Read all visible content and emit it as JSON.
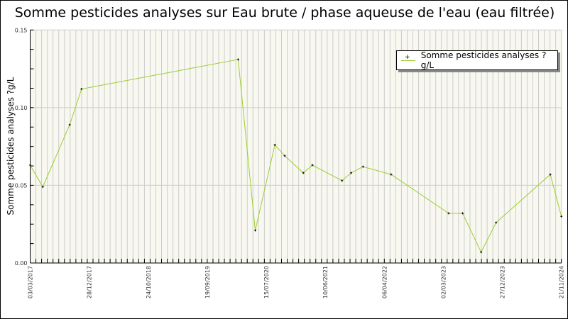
{
  "chart_data": {
    "type": "line",
    "title": "Somme pesticides analyses sur Eau brute / phase aqueuse de l'eau (eau filtrée)",
    "xlabel": "",
    "ylabel": "Somme pesticides analyses ?g/L",
    "ylim": [
      0,
      0.15
    ],
    "yticks": [
      "0.00",
      "0.05",
      "0.10",
      "0.15"
    ],
    "xticks": [
      "03/03/2017",
      "28/12/2017",
      "24/10/2018",
      "19/09/2019",
      "15/07/2020",
      "10/06/2021",
      "06/04/2022",
      "02/03/2023",
      "27/12/2023",
      "21/11/2024"
    ],
    "grid": true,
    "legend_position": "top-right",
    "series": [
      {
        "name": "Somme pesticides analyses ?g/L",
        "color": "#9acd32",
        "marker_color": "#000000",
        "points": [
          {
            "x": "03/03/2017",
            "y": 0.063
          },
          {
            "x": "06/05/2017",
            "y": 0.049
          },
          {
            "x": "20/09/2017",
            "y": 0.089
          },
          {
            "x": "19/11/2017",
            "y": 0.112
          },
          {
            "x": "23/02/2020",
            "y": 0.131
          },
          {
            "x": "20/05/2020",
            "y": 0.021
          },
          {
            "x": "01/09/2020",
            "y": 0.076
          },
          {
            "x": "26/10/2020",
            "y": 0.069
          },
          {
            "x": "07/02/2021",
            "y": 0.058
          },
          {
            "x": "30/03/2021",
            "y": 0.063
          },
          {
            "x": "03/09/2021",
            "y": 0.053
          },
          {
            "x": "19/10/2021",
            "y": 0.058
          },
          {
            "x": "19/12/2021",
            "y": 0.062
          },
          {
            "x": "14/05/2022",
            "y": 0.057
          },
          {
            "x": "29/03/2023",
            "y": 0.032
          },
          {
            "x": "08/06/2023",
            "y": 0.032
          },
          {
            "x": "10/09/2023",
            "y": 0.007
          },
          {
            "x": "25/11/2023",
            "y": 0.026
          },
          {
            "x": "20/09/2024",
            "y": 0.057
          },
          {
            "x": "21/11/2024",
            "y": 0.03
          }
        ]
      }
    ]
  }
}
